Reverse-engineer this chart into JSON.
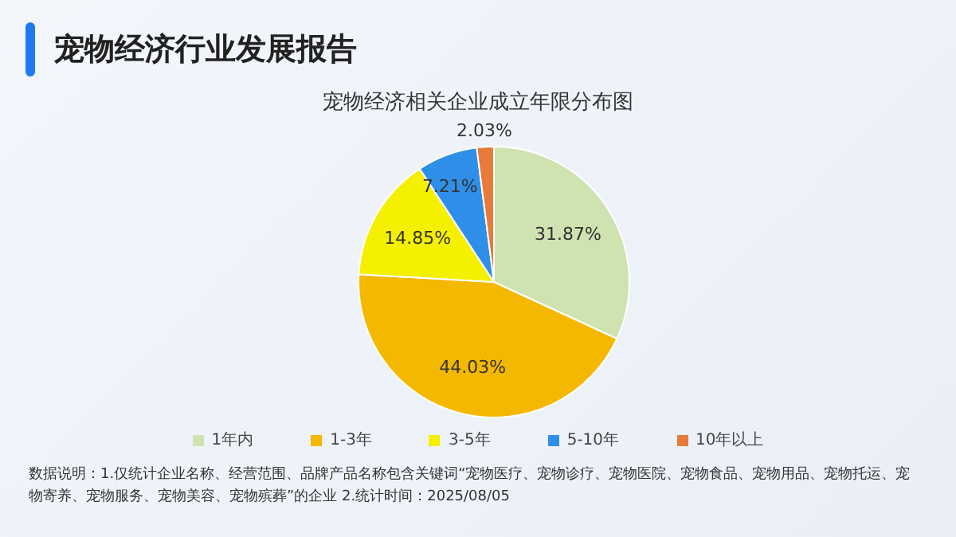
{
  "chart_data": {
    "type": "pie",
    "title": "宠物经济行业发展报告",
    "subtitle": "宠物经济相关企业成立年限分布图",
    "categories": [
      "1年内",
      "1-3年",
      "3-5年",
      "5-10年",
      "10年以上"
    ],
    "values": [
      31.87,
      44.03,
      14.85,
      7.21,
      2.03
    ],
    "colors": [
      "#cfe3b0",
      "#f5b800",
      "#f5f000",
      "#2f8fe8",
      "#e87a3a"
    ],
    "value_labels": [
      "31.87%",
      "44.03%",
      "14.85%",
      "7.21%",
      "2.03%"
    ],
    "legend": "bottom",
    "annotations": [
      "数据说明：1.仅统计企业名称、经营范围、品牌产品名称包含关键词“宠物医疗、宠物诊疗、宠物医院、宠物食品、宠物用品、宠物托运、宠物寄养、宠物服务、宠物美容、宠物殡葬”的企业 2.统计时间：2025/08/05"
    ]
  }
}
